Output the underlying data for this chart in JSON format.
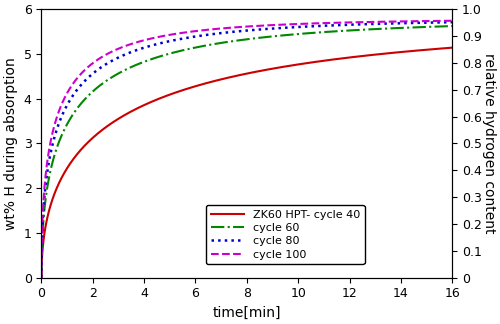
{
  "title": "",
  "xlabel": "time[min]",
  "ylabel_left": "wt% H during absorption",
  "ylabel_right": "relative hydrogen content",
  "xlim": [
    0,
    16
  ],
  "ylim_left": [
    0,
    6
  ],
  "ylim_right": [
    0,
    1
  ],
  "xticks": [
    0,
    2,
    4,
    6,
    8,
    10,
    12,
    14,
    16
  ],
  "yticks_left": [
    0,
    1,
    2,
    3,
    4,
    5,
    6
  ],
  "yticks_right": [
    0,
    0.1,
    0.2,
    0.3,
    0.4,
    0.5,
    0.6,
    0.7,
    0.8,
    0.9,
    1.0
  ],
  "series": [
    {
      "label": "ZK60 HPT- cycle 40",
      "color": "#cc0000",
      "linestyle": "solid",
      "linewidth": 1.5,
      "max_wt": 5.78,
      "rate": 0.55
    },
    {
      "label": "cycle 60",
      "color": "#008800",
      "linestyle": "dashdot",
      "linewidth": 1.5,
      "max_wt": 5.78,
      "rate": 0.9
    },
    {
      "label": "cycle 80",
      "color": "#0000cc",
      "linestyle": "dotted",
      "linewidth": 1.8,
      "max_wt": 5.78,
      "rate": 1.1
    },
    {
      "label": "cycle 100",
      "color": "#cc00cc",
      "linestyle": "dashed",
      "linewidth": 1.5,
      "max_wt": 5.78,
      "rate": 1.25
    }
  ],
  "background_color": "#ffffff",
  "legend_fontsize": 8.0,
  "tick_fontsize": 9,
  "label_fontsize": 10
}
